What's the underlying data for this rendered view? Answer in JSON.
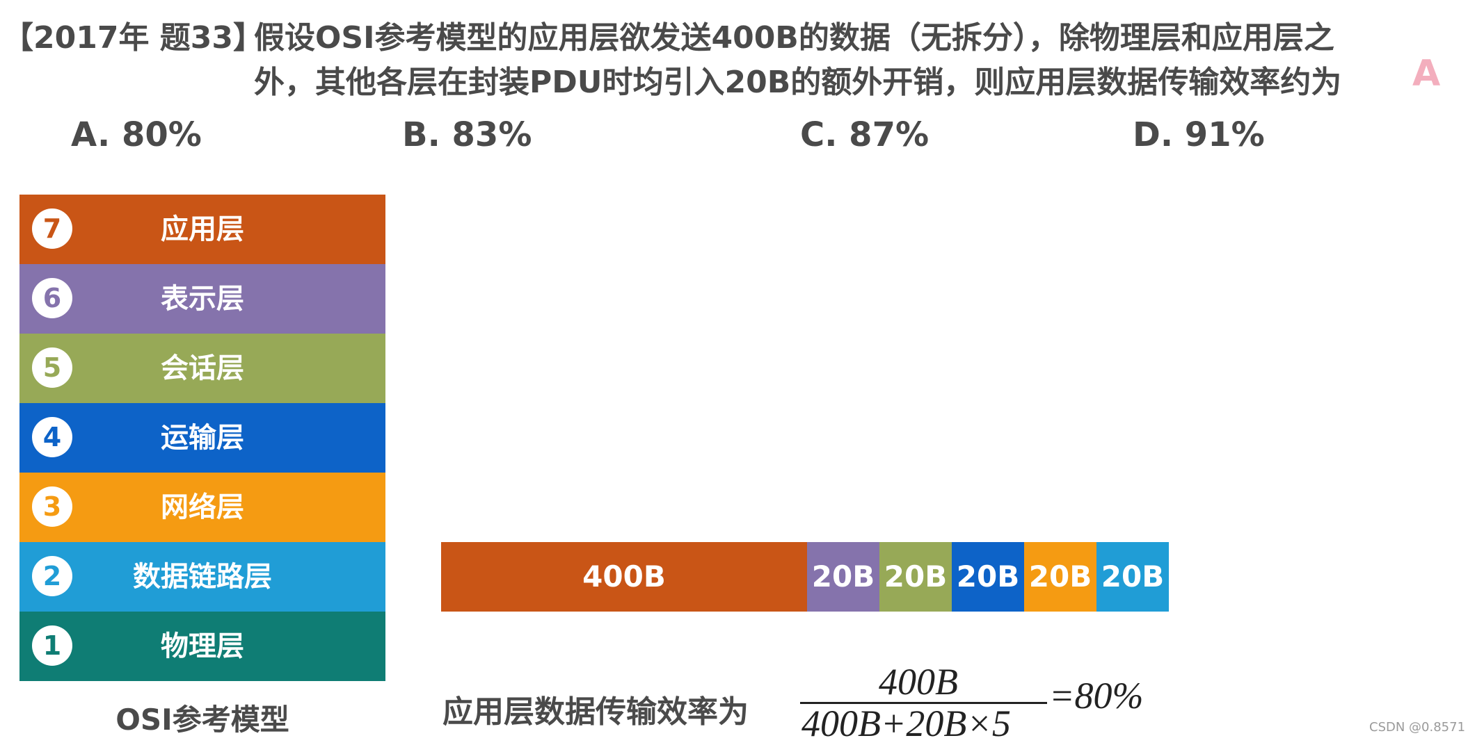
{
  "question": {
    "tag": "【2017年 题33】",
    "line1": "假设OSI参考模型的应用层欲发送400B的数据（无拆分），除物理层和应用层之",
    "line2": "外，其他各层在封装PDU时均引入20B的额外开销，则应用层数据传输效率约为",
    "answer": "A"
  },
  "options": [
    {
      "label": "A. 80%"
    },
    {
      "label": "B. 83%"
    },
    {
      "label": "C. 87%"
    },
    {
      "label": "D. 91%"
    }
  ],
  "osi": {
    "caption": "OSI参考模型",
    "layers": [
      {
        "num": "7",
        "name": "应用层",
        "color": "#c95516"
      },
      {
        "num": "6",
        "name": "表示层",
        "color": "#8573ac"
      },
      {
        "num": "5",
        "name": "会话层",
        "color": "#97a957"
      },
      {
        "num": "4",
        "name": "运输层",
        "color": "#0d63c8"
      },
      {
        "num": "3",
        "name": "网络层",
        "color": "#f59b12"
      },
      {
        "num": "2",
        "name": "数据链路层",
        "color": "#209dd6"
      },
      {
        "num": "1",
        "name": "物理层",
        "color": "#0f7d74"
      }
    ]
  },
  "pdu": {
    "segments": [
      {
        "label": "400B",
        "color": "#c95516"
      },
      {
        "label": "20B",
        "color": "#8573ac"
      },
      {
        "label": "20B",
        "color": "#97a957"
      },
      {
        "label": "20B",
        "color": "#0d63c8"
      },
      {
        "label": "20B",
        "color": "#f59b12"
      },
      {
        "label": "20B",
        "color": "#209dd6"
      }
    ]
  },
  "formula": {
    "label": "应用层数据传输效率为",
    "numerator": "400B",
    "denominator": "400B+20B×5",
    "result": "=80%"
  },
  "watermark": "CSDN @0.8571"
}
